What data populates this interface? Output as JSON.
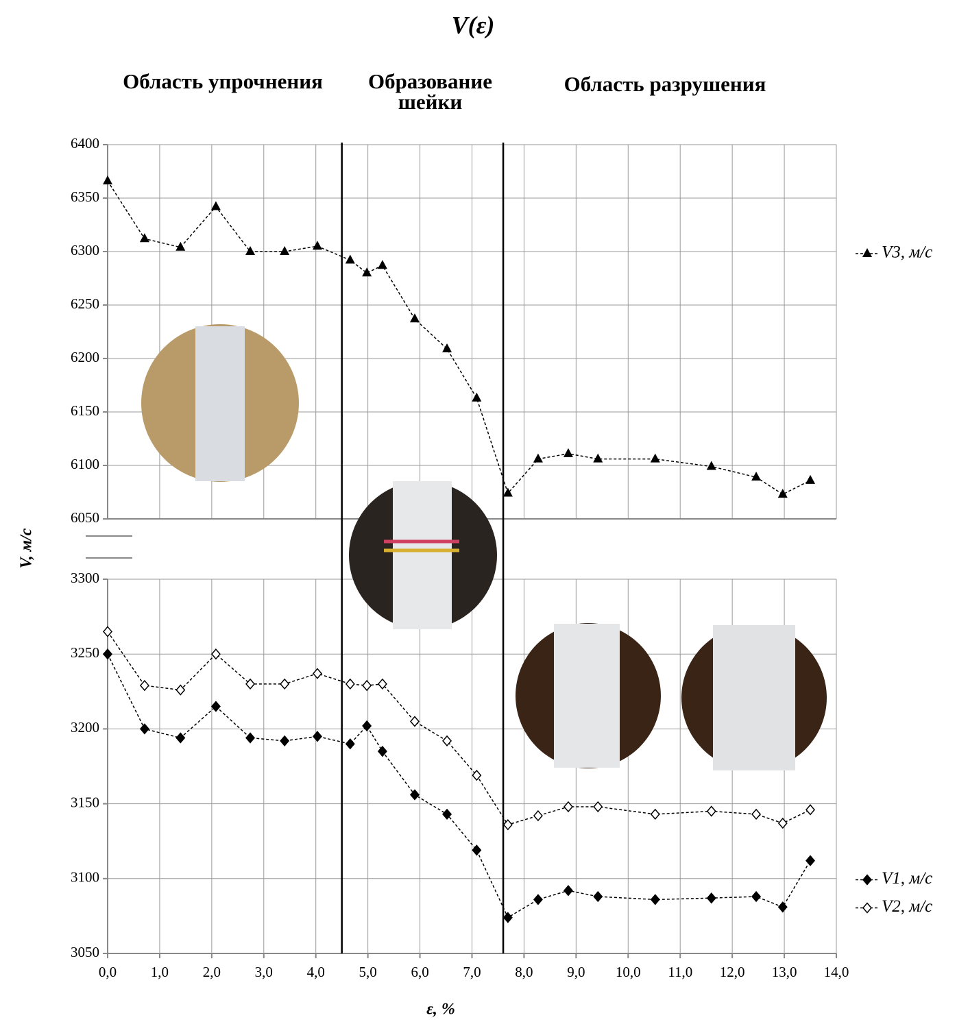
{
  "chart_data": [
    {
      "type": "line",
      "title": "V(ε)",
      "ylabel": "V, м/с",
      "annotations": [
        "Область упрочнения",
        "Образование шейки",
        "Область разрушения"
      ],
      "vlines": [
        4.5,
        7.6
      ],
      "x": [
        0,
        0.71,
        1.4,
        2.08,
        2.74,
        3.4,
        4.03,
        4.66,
        4.98,
        5.28,
        5.9,
        6.52,
        7.09,
        7.69,
        8.27,
        8.85,
        9.42,
        10.52,
        11.6,
        12.46,
        12.97,
        13.5
      ],
      "series": [
        {
          "name": "V3, м/с",
          "color": "#000000",
          "marker": "triangle",
          "values": [
            6366,
            6312,
            6304,
            6342,
            6300,
            6300,
            6305,
            6292,
            6280,
            6287,
            6237,
            6209,
            6163,
            6074,
            6106,
            6111,
            6106,
            6106,
            6099,
            6089,
            6073,
            6086
          ]
        }
      ],
      "ylim": [
        6050,
        6400
      ],
      "yticks": [
        6050,
        6100,
        6150,
        6200,
        6250,
        6300,
        6350,
        6400
      ],
      "grid": true,
      "legend": "right"
    },
    {
      "type": "line",
      "xlabel": "ε, %",
      "x": [
        0,
        0.71,
        1.4,
        2.08,
        2.74,
        3.4,
        4.03,
        4.66,
        4.98,
        5.28,
        5.9,
        6.52,
        7.09,
        7.69,
        8.27,
        8.85,
        9.42,
        10.52,
        11.6,
        12.46,
        12.97,
        13.5
      ],
      "series": [
        {
          "name": "V1, м/с",
          "color": "#000000",
          "marker": "diamond",
          "values": [
            3250,
            3200,
            3194,
            3215,
            3194,
            3192,
            3195,
            3190,
            3202,
            3185,
            3156,
            3143,
            3119,
            3074,
            3086,
            3092,
            3088,
            3086,
            3087,
            3088,
            3081,
            3112
          ]
        },
        {
          "name": "V2, м/с",
          "color": "#000000",
          "marker": "diamond-open",
          "values": [
            3265,
            3229,
            3226,
            3250,
            3230,
            3230,
            3237,
            3230,
            3229,
            3230,
            3205,
            3192,
            3169,
            3136,
            3142,
            3148,
            3148,
            3143,
            3145,
            3143,
            3137,
            3146
          ]
        }
      ],
      "xlim": [
        0,
        14
      ],
      "xticks": [
        {
          "value": 0,
          "label": "0,0"
        },
        {
          "value": 1,
          "label": "1,0"
        },
        {
          "value": 2,
          "label": "2,0"
        },
        {
          "value": 3,
          "label": "3,0"
        },
        {
          "value": 4,
          "label": "4,0"
        },
        {
          "value": 5,
          "label": "5,0"
        },
        {
          "value": 6,
          "label": "6,0"
        },
        {
          "value": 7,
          "label": "7,0"
        },
        {
          "value": 8,
          "label": "8,0"
        },
        {
          "value": 9,
          "label": "9,0"
        },
        {
          "value": 10,
          "label": "10,0"
        },
        {
          "value": 11,
          "label": "11,0"
        },
        {
          "value": 12,
          "label": "12,0"
        },
        {
          "value": 13,
          "label": "13,0"
        },
        {
          "value": 14,
          "label": "14,0"
        }
      ],
      "ylim": [
        3050,
        3300
      ],
      "yticks": [
        3050,
        3100,
        3150,
        3200,
        3250,
        3300
      ],
      "grid": true,
      "legend": "right"
    }
  ]
}
